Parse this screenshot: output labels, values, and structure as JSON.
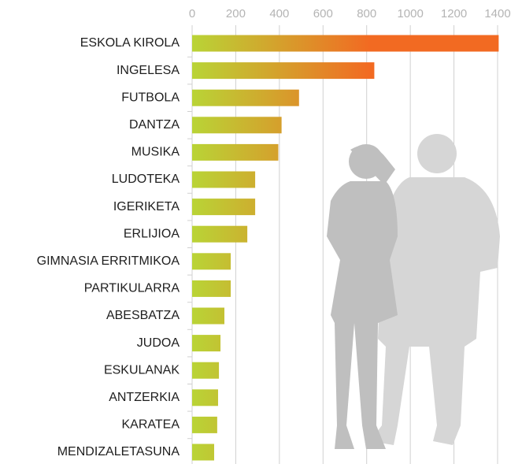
{
  "chart_data": {
    "type": "barh",
    "categories": [
      "ESKOLA KIROLA",
      "INGELESA",
      "FUTBOLA",
      "DANTZA",
      "MUSIKA",
      "LUDOTEKA",
      "IGERIKETA",
      "ERLIJIOA",
      "GIMNASIA ERRITMIKOA",
      "PARTIKULARRA",
      "ABESBATZA",
      "JUDOA",
      "ESKULANAK",
      "ANTZERKIA",
      "KARATEA",
      "MENDIZALETASUNA"
    ],
    "values": [
      1405,
      835,
      490,
      410,
      395,
      289,
      289,
      253,
      177,
      177,
      148,
      130,
      123,
      119,
      115,
      101
    ],
    "colors": [
      "#b9d436",
      "#f26a22"
    ],
    "xlim": [
      0,
      1400
    ],
    "xticks": [
      0,
      200,
      400,
      600,
      800,
      1000,
      1200,
      1400
    ],
    "grid": true
  }
}
